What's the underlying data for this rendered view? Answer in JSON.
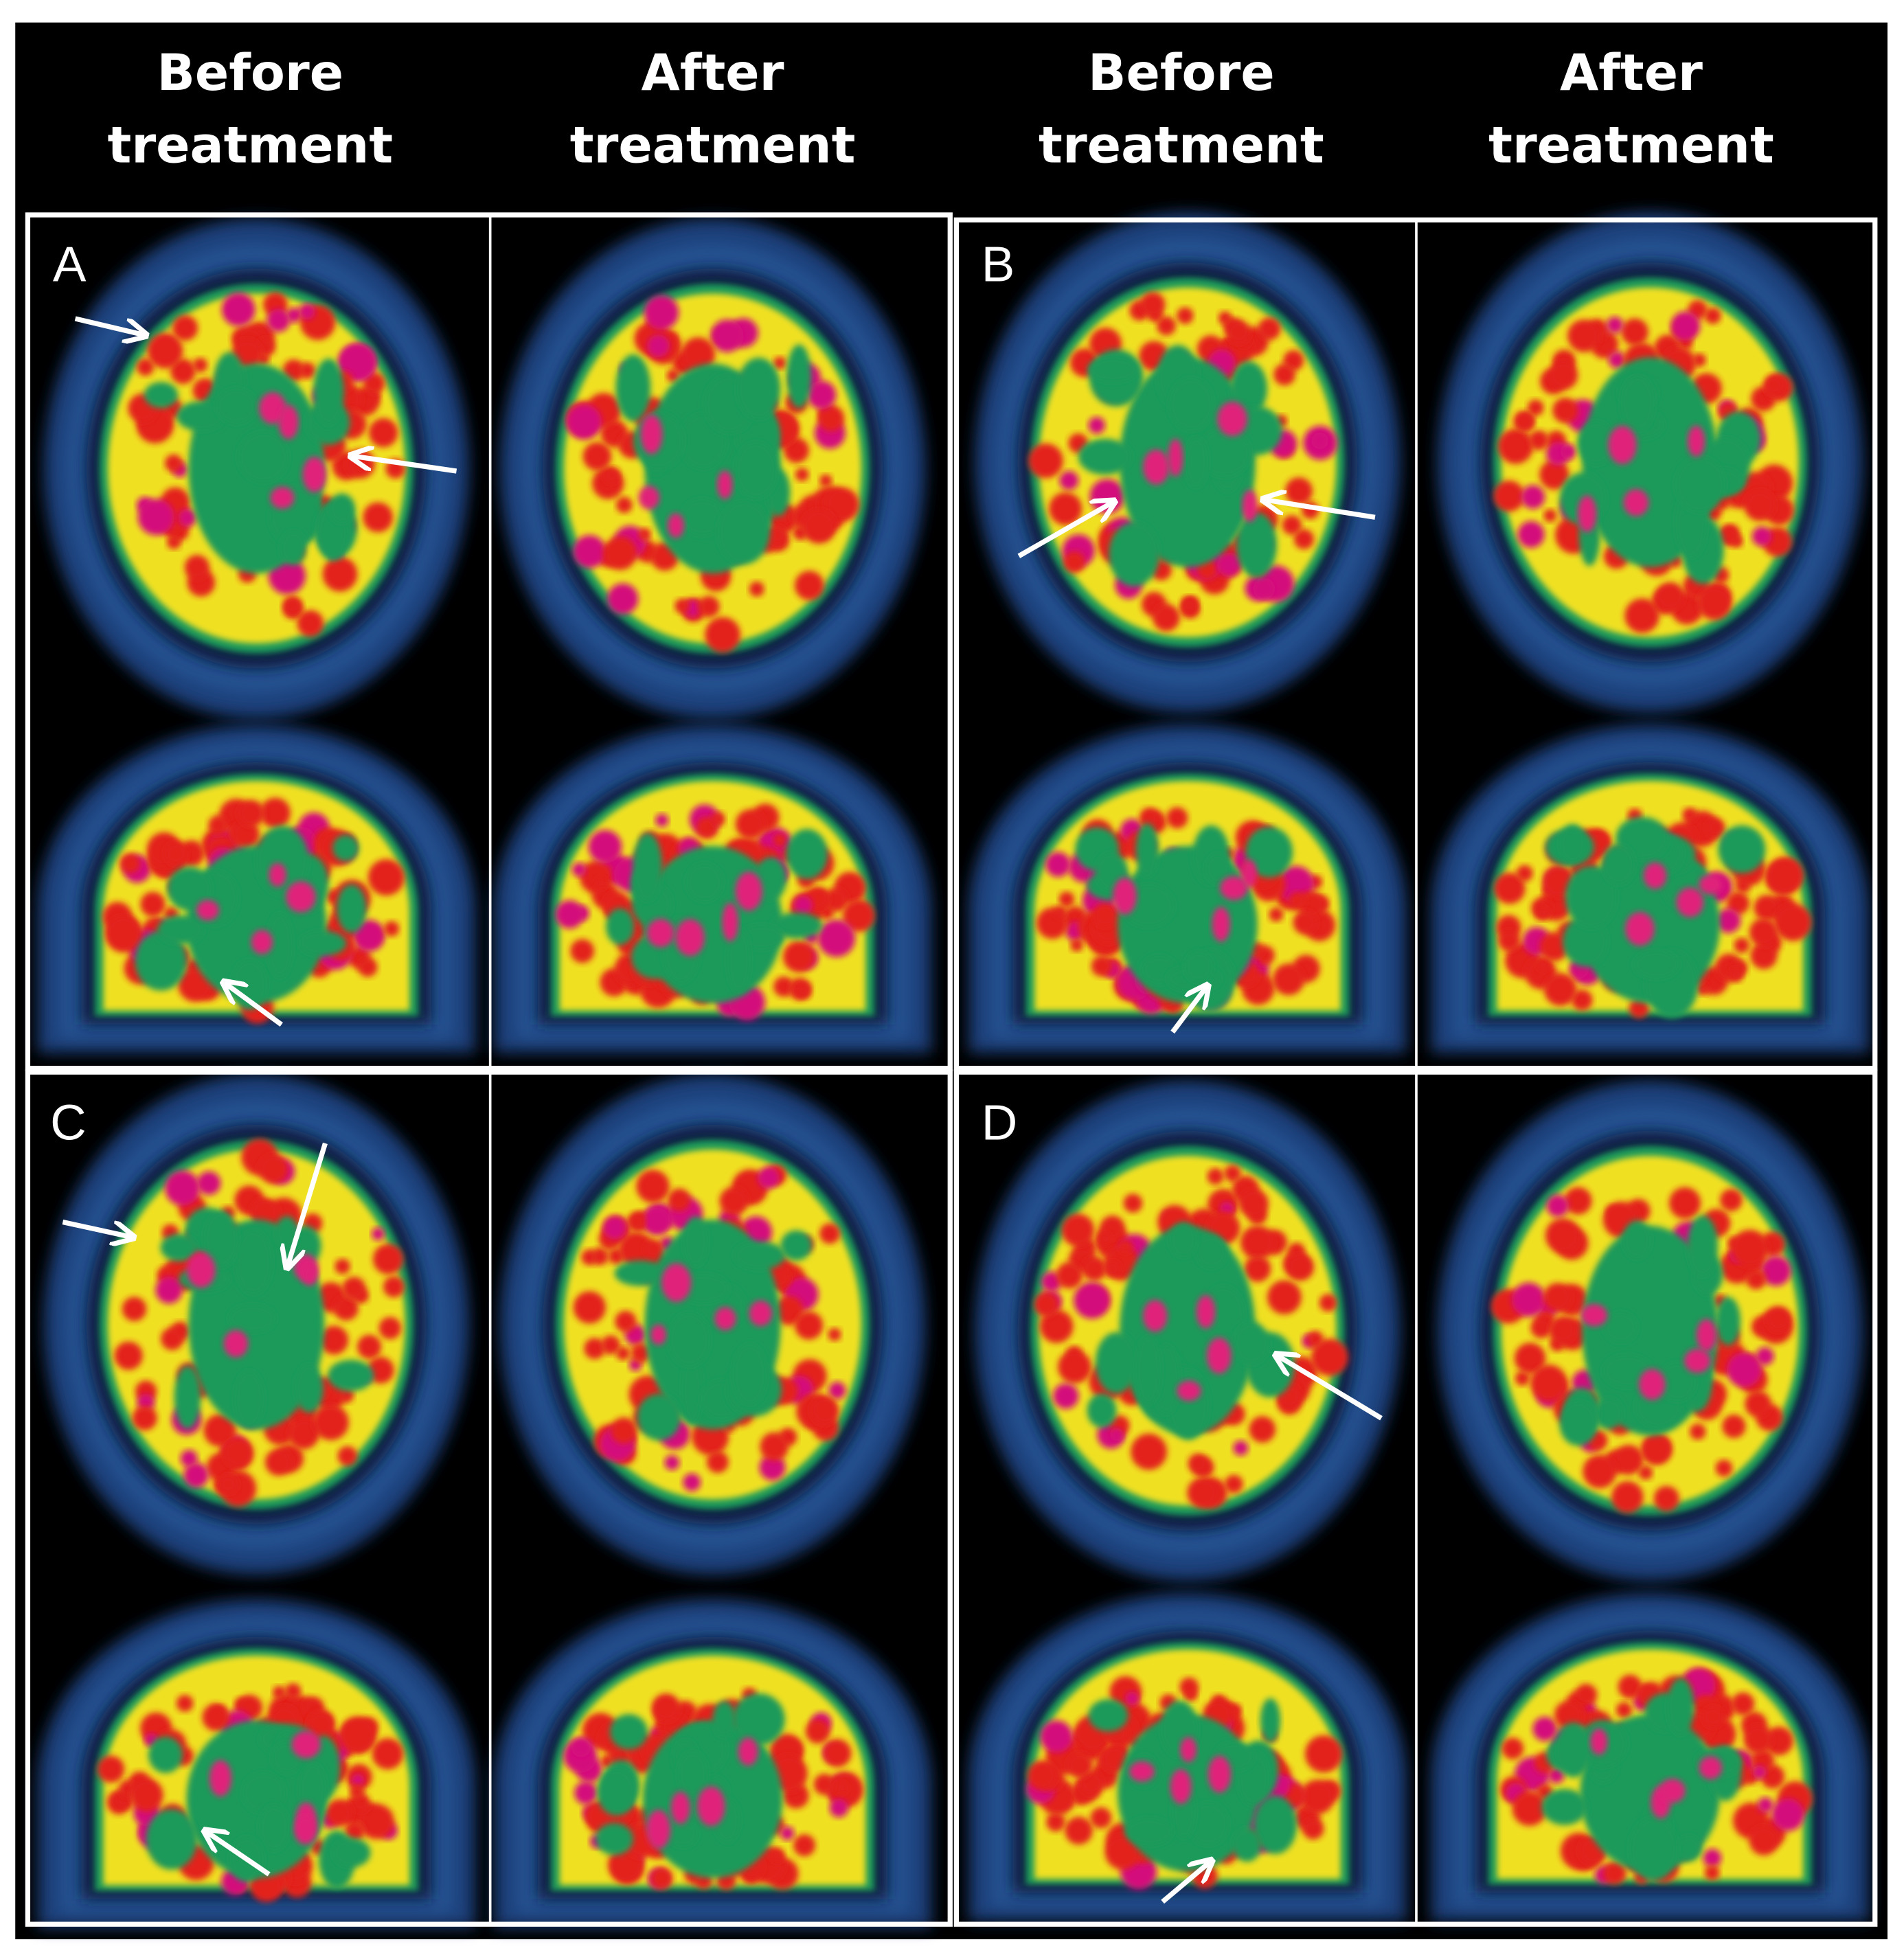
{
  "headers": [
    {
      "lines": [
        "Before",
        "treatment"
      ]
    },
    {
      "lines": [
        "After",
        "treatment"
      ]
    },
    {
      "lines": [
        "Before",
        "treatment"
      ]
    },
    {
      "lines": [
        "After",
        "treatment"
      ]
    }
  ],
  "panels": [
    "A",
    "B",
    "C",
    "D"
  ]
}
